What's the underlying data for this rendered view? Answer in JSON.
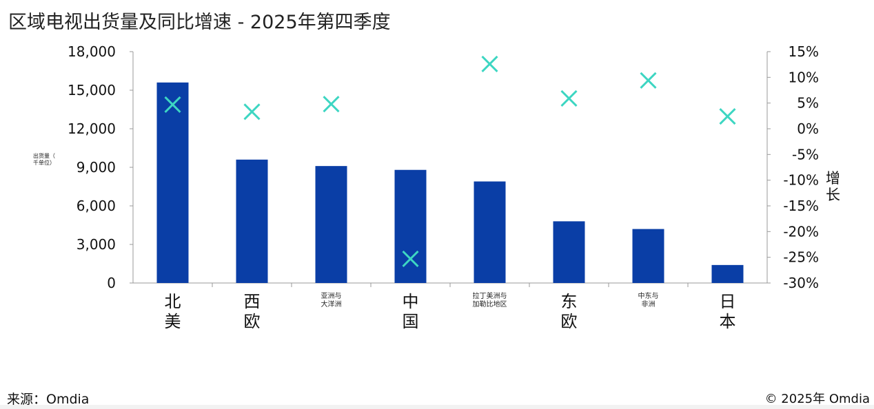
{
  "title": "区域电视出货量及同比增速 - 2025年第四季度",
  "source": "来源：Omdia",
  "copyright": "© 2025年 Omdia",
  "chart_data": {
    "type": "bar+scatter",
    "title": "区域电视出货量及同比增速 - 2025年第四季度",
    "categories": [
      [
        "北",
        "美"
      ],
      [
        "西",
        "欧"
      ],
      [
        "亚洲与",
        "大洋洲"
      ],
      [
        "中",
        "国"
      ],
      [
        "拉丁美洲与",
        "加勒比地区"
      ],
      [
        "东",
        "欧"
      ],
      [
        "中东与",
        "非洲"
      ],
      [
        "日",
        "本"
      ]
    ],
    "ylabel_left": [
      "出货量（",
      "千单位）"
    ],
    "ylabel_right": [
      "增",
      "长"
    ],
    "ylim_left": [
      0,
      18000
    ],
    "yticks_left": [
      "0",
      "3,000",
      "6,000",
      "9,000",
      "12,000",
      "15,000",
      "18,000"
    ],
    "ylim_right": [
      -30,
      15
    ],
    "yticks_right": [
      "-30%",
      "-25%",
      "-20%",
      "-15%",
      "-10%",
      "-5%",
      "0%",
      "5%",
      "10%",
      "15%"
    ],
    "series": [
      {
        "type": "bar",
        "axis": "left",
        "color": "#0a3ea6",
        "values": [
          15600,
          9600,
          9100,
          8800,
          7900,
          4800,
          4200,
          1400
        ]
      },
      {
        "type": "scatter",
        "axis": "right",
        "marker": "x",
        "color": "#3dd6c2",
        "values": [
          4.7,
          3.3,
          4.8,
          -25.3,
          12.6,
          5.9,
          9.4,
          2.4
        ]
      }
    ],
    "grid": false,
    "legend": "none"
  }
}
